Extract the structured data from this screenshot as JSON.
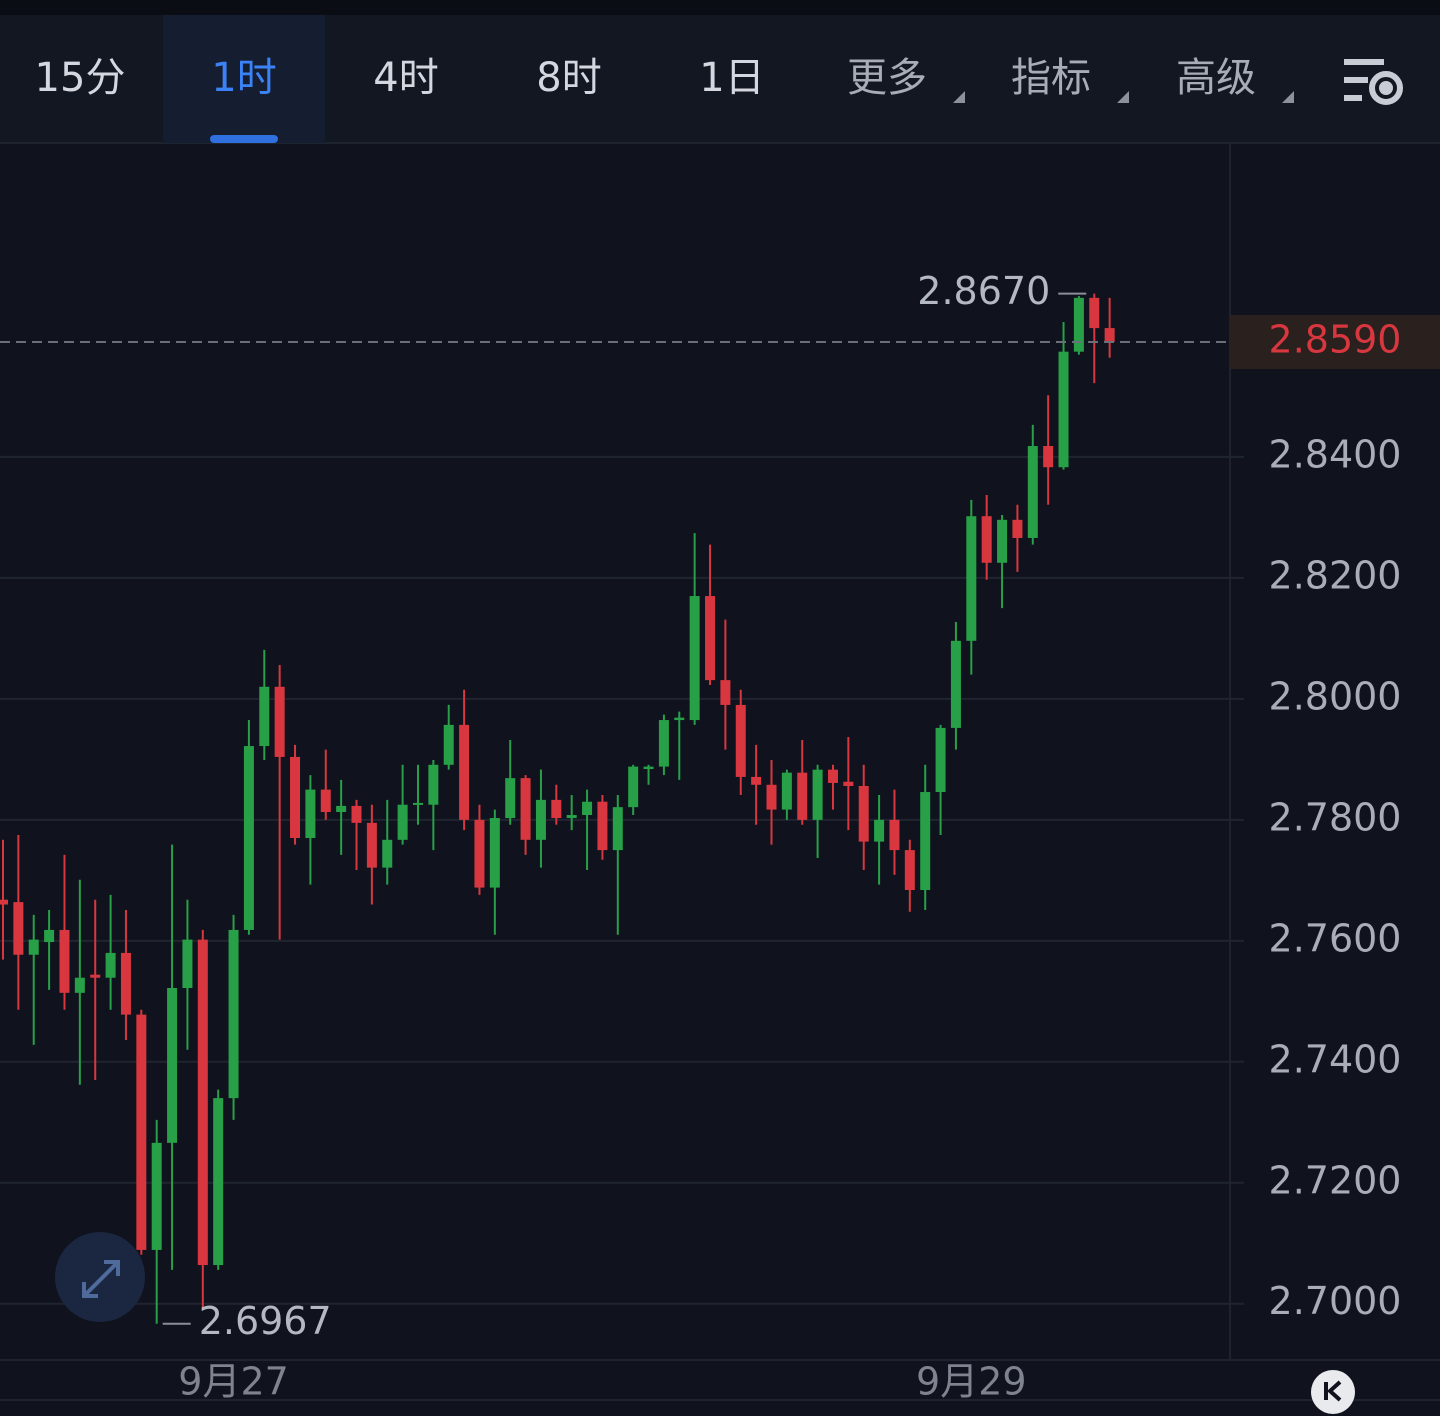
{
  "toolbar": {
    "tabs": [
      "15分",
      "1时",
      "4时",
      "8时",
      "1日",
      "更多",
      "指标",
      "高级"
    ],
    "active": 1
  },
  "chart_data": {
    "type": "candlestick",
    "categories": [
      null,
      null,
      null,
      null,
      null,
      null,
      null,
      null,
      null,
      null,
      null,
      null,
      null,
      null,
      null,
      "9月27",
      null,
      null,
      null,
      null,
      null,
      null,
      null,
      null,
      null,
      null,
      null,
      null,
      null,
      null,
      null,
      null,
      null,
      null,
      null,
      null,
      null,
      null,
      null,
      null,
      null,
      null,
      null,
      null,
      null,
      null,
      null,
      null,
      null,
      null,
      null,
      null,
      null,
      null,
      null,
      null,
      null,
      null,
      null,
      null,
      null,
      null,
      null,
      "9月29",
      null,
      null,
      null,
      null,
      null,
      null,
      null,
      null,
      null
    ],
    "open": [
      2.7668,
      2.7664,
      2.7577,
      2.7598,
      2.7618,
      2.7514,
      2.7544,
      2.7539,
      2.758,
      2.7478,
      2.7089,
      2.7266,
      2.7522,
      2.7602,
      2.7064,
      2.734,
      2.7618,
      2.7922,
      2.802,
      2.7904,
      2.777,
      2.785,
      2.7813,
      2.7823,
      2.7795,
      2.7721,
      2.7767,
      2.7825,
      2.7825,
      2.7891,
      2.7957,
      2.78,
      2.7688,
      2.7803,
      2.7869,
      2.7767,
      2.7833,
      2.7803,
      2.7808,
      2.783,
      2.775,
      2.7821,
      2.7884,
      2.7888,
      2.7965,
      2.7965,
      2.817,
      2.8031,
      2.799,
      2.7871,
      2.7858,
      2.7817,
      2.7878,
      2.78,
      2.7883,
      2.7863,
      2.7856,
      2.7764,
      2.78,
      2.775,
      2.7684,
      2.7846,
      2.7952,
      2.8096,
      2.8302,
      2.8225,
      2.8296,
      2.8266,
      2.8418,
      2.8383,
      2.8574,
      2.8663,
      2.8613
    ],
    "high": [
      2.7767,
      2.7775,
      2.7643,
      2.7651,
      2.7742,
      2.7701,
      2.7668,
      2.7676,
      2.7651,
      2.7486,
      2.7304,
      2.7759,
      2.7668,
      2.7618,
      2.7354,
      2.7643,
      2.7965,
      2.8081,
      2.8056,
      2.7924,
      2.7874,
      2.7916,
      2.7866,
      2.7833,
      2.7825,
      2.7833,
      2.7891,
      2.7891,
      2.7899,
      2.799,
      2.8015,
      2.7825,
      2.7817,
      2.7932,
      2.7874,
      2.7883,
      2.7858,
      2.7841,
      2.785,
      2.7841,
      2.7841,
      2.7891,
      2.7891,
      2.7974,
      2.7979,
      2.8274,
      2.8255,
      2.8131,
      2.8015,
      2.7924,
      2.7899,
      2.7883,
      2.7932,
      2.7891,
      2.7891,
      2.7937,
      2.7891,
      2.7841,
      2.785,
      2.7767,
      2.7891,
      2.7957,
      2.8127,
      2.8329,
      2.8337,
      2.8304,
      2.8321,
      2.8453,
      2.8502,
      2.8623,
      2.8666,
      2.867,
      2.8663
    ],
    "low": [
      2.7569,
      2.7486,
      2.7428,
      2.7519,
      2.7486,
      2.7362,
      2.737,
      2.7486,
      2.7436,
      2.7081,
      2.6967,
      2.7056,
      2.742,
      2.699,
      2.7056,
      2.7304,
      2.761,
      2.7899,
      2.7602,
      2.7759,
      2.7693,
      2.78,
      2.7742,
      2.7717,
      2.766,
      2.7693,
      2.7759,
      2.7792,
      2.775,
      2.7883,
      2.7783,
      2.7676,
      2.761,
      2.7792,
      2.7742,
      2.7721,
      2.7792,
      2.7783,
      2.7717,
      2.7734,
      2.761,
      2.7808,
      2.7858,
      2.7874,
      2.7866,
      2.7957,
      2.8023,
      2.7916,
      2.7841,
      2.7792,
      2.7759,
      2.78,
      2.7792,
      2.7737,
      2.7817,
      2.7783,
      2.7717,
      2.7693,
      2.7709,
      2.7648,
      2.7651,
      2.7775,
      2.7916,
      2.804,
      2.8197,
      2.815,
      2.821,
      2.8255,
      2.8321,
      2.8379,
      2.8569,
      2.8522,
      2.8564
    ],
    "close": [
      2.766,
      2.7577,
      2.7602,
      2.7618,
      2.7514,
      2.7539,
      2.7539,
      2.758,
      2.7478,
      2.7089,
      2.7266,
      2.7522,
      2.7602,
      2.7064,
      2.734,
      2.7618,
      2.7922,
      2.802,
      2.7904,
      2.777,
      2.785,
      2.7813,
      2.7823,
      2.7795,
      2.7721,
      2.7767,
      2.7825,
      2.7828,
      2.7891,
      2.7957,
      2.78,
      2.7688,
      2.7803,
      2.7869,
      2.7767,
      2.7833,
      2.7803,
      2.7808,
      2.783,
      2.775,
      2.7821,
      2.7888,
      2.7888,
      2.7965,
      2.7969,
      2.817,
      2.8031,
      2.799,
      2.7871,
      2.7858,
      2.7817,
      2.7878,
      2.78,
      2.7883,
      2.7861,
      2.7856,
      2.7764,
      2.78,
      2.775,
      2.7684,
      2.7846,
      2.7952,
      2.8096,
      2.8302,
      2.8225,
      2.8296,
      2.8266,
      2.8418,
      2.8383,
      2.8574,
      2.8663,
      2.8613,
      2.859
    ],
    "up_color": "#27a048",
    "down_color": "#d8373f",
    "ylim": [
      2.6907,
      2.8919
    ],
    "yticks": [
      {
        "value": 2.7,
        "label": "2.7000"
      },
      {
        "value": 2.72,
        "label": "2.7200"
      },
      {
        "value": 2.74,
        "label": "2.7400"
      },
      {
        "value": 2.76,
        "label": "2.7600"
      },
      {
        "value": 2.78,
        "label": "2.7800"
      },
      {
        "value": 2.8,
        "label": "2.8000"
      },
      {
        "value": 2.82,
        "label": "2.8200"
      },
      {
        "value": 2.84,
        "label": "2.8400"
      }
    ],
    "grid": true,
    "last_price": {
      "value": 2.859,
      "label": "2.8590"
    },
    "max_label": {
      "value": 2.867,
      "label": "2.8670"
    },
    "min_label": {
      "value": 2.6967,
      "label": "2.6967"
    }
  }
}
